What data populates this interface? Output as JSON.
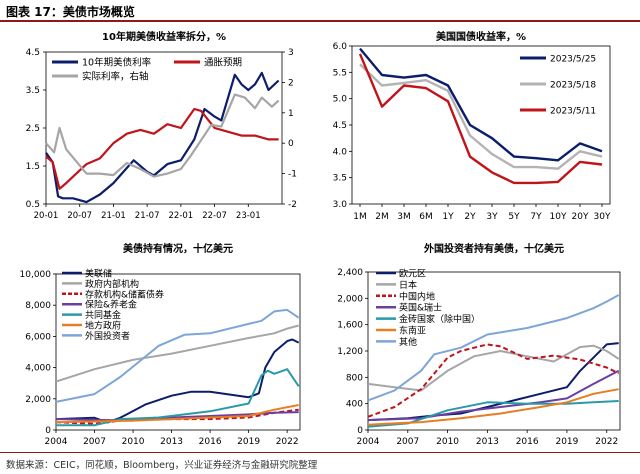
{
  "figure": {
    "label": "图表 17：美债市场概览",
    "source": "数据来源：CEIC，同花顺，Bloomberg，兴业证券经济与金融研究院整理"
  },
  "colors": {
    "navy": "#0b1d6b",
    "red": "#c0141b",
    "gray": "#a6a6a6",
    "lightgray": "#bfbfbf",
    "purple": "#6b3fa0",
    "teal": "#2a9aa8",
    "orange": "#e87d22",
    "blue": "#7da6d6"
  },
  "chart_data": [
    {
      "type": "line",
      "title": "10年期美债收益率拆分，%",
      "ylim": [
        0.5,
        4.5
      ],
      "yticks": [
        0.5,
        1.5,
        2.5,
        3.5,
        4.5
      ],
      "y2lim": [
        -2,
        3
      ],
      "y2ticks": [
        -2,
        -1,
        0,
        1,
        2,
        3
      ],
      "x_range": [
        2020.0,
        2023.5
      ],
      "xticks": [
        {
          "t": 2020.0,
          "label": "20-01"
        },
        {
          "t": 2020.5,
          "label": "20-07"
        },
        {
          "t": 2021.0,
          "label": "21-01"
        },
        {
          "t": 2021.5,
          "label": "21-07"
        },
        {
          "t": 2022.0,
          "label": "22-01"
        },
        {
          "t": 2022.5,
          "label": "22-07"
        },
        {
          "t": 2023.0,
          "label": "23-01"
        }
      ],
      "legend_position": "top",
      "series": [
        {
          "name": "10年期美债利率",
          "color": "#0b1d6b",
          "axis": "left",
          "x": [
            2020.0,
            2020.1,
            2020.18,
            2020.25,
            2020.4,
            2020.6,
            2020.8,
            2021.0,
            2021.2,
            2021.3,
            2021.5,
            2021.6,
            2021.8,
            2022.0,
            2022.2,
            2022.35,
            2022.5,
            2022.6,
            2022.8,
            2022.9,
            2023.0,
            2023.1,
            2023.2,
            2023.3,
            2023.45
          ],
          "values": [
            1.85,
            1.6,
            0.7,
            0.65,
            0.65,
            0.55,
            0.75,
            1.05,
            1.45,
            1.65,
            1.35,
            1.25,
            1.55,
            1.65,
            2.2,
            3.0,
            2.8,
            2.7,
            3.9,
            3.65,
            3.5,
            3.65,
            3.95,
            3.5,
            3.75
          ]
        },
        {
          "name": "通胀预期",
          "color": "#c0141b",
          "axis": "left",
          "x": [
            2020.0,
            2020.1,
            2020.2,
            2020.3,
            2020.45,
            2020.6,
            2020.8,
            2021.0,
            2021.2,
            2021.4,
            2021.6,
            2021.8,
            2022.0,
            2022.2,
            2022.3,
            2022.5,
            2022.7,
            2022.9,
            2023.1,
            2023.3,
            2023.45
          ],
          "values": [
            1.75,
            1.6,
            0.9,
            1.05,
            1.3,
            1.55,
            1.7,
            2.1,
            2.35,
            2.45,
            2.35,
            2.6,
            2.5,
            3.0,
            2.95,
            2.5,
            2.4,
            2.3,
            2.3,
            2.2,
            2.2
          ]
        },
        {
          "name": "实际利率，右轴",
          "color": "#a6a6a6",
          "axis": "right",
          "x": [
            2020.0,
            2020.12,
            2020.2,
            2020.3,
            2020.45,
            2020.6,
            2020.8,
            2021.0,
            2021.2,
            2021.4,
            2021.6,
            2021.8,
            2022.0,
            2022.15,
            2022.3,
            2022.45,
            2022.6,
            2022.8,
            2022.95,
            2023.1,
            2023.2,
            2023.35,
            2023.45
          ],
          "values": [
            0.0,
            -0.3,
            0.5,
            -0.2,
            -0.6,
            -1.0,
            -1.0,
            -1.05,
            -0.65,
            -0.85,
            -1.1,
            -1.0,
            -0.85,
            -0.4,
            0.1,
            0.6,
            0.55,
            1.6,
            1.5,
            1.15,
            1.5,
            1.2,
            1.4
          ]
        }
      ]
    },
    {
      "type": "line",
      "title": "美国国债收益率，%",
      "categories": [
        "1M",
        "2M",
        "3M",
        "6M",
        "1Y",
        "2Y",
        "3Y",
        "5Y",
        "7Y",
        "10Y",
        "20Y",
        "30Y"
      ],
      "ylim": [
        3.0,
        6.0
      ],
      "yticks": [
        3.0,
        3.5,
        4.0,
        4.5,
        5.0,
        5.5,
        6.0
      ],
      "legend_position": "top-right",
      "series": [
        {
          "name": "2023/5/25",
          "color": "#0b1d6b",
          "values": [
            5.95,
            5.45,
            5.4,
            5.45,
            5.25,
            4.5,
            4.25,
            3.9,
            3.87,
            3.83,
            4.15,
            4.0
          ]
        },
        {
          "name": "2023/5/18",
          "color": "#b3b3b3",
          "values": [
            5.65,
            5.25,
            5.3,
            5.35,
            5.15,
            4.3,
            3.95,
            3.7,
            3.7,
            3.67,
            4.0,
            3.9
          ]
        },
        {
          "name": "2023/5/11",
          "color": "#c0141b",
          "values": [
            5.85,
            4.85,
            5.25,
            5.2,
            4.95,
            3.9,
            3.6,
            3.4,
            3.4,
            3.42,
            3.8,
            3.75
          ]
        }
      ]
    },
    {
      "type": "line",
      "title": "美债持有情况，十亿美元",
      "ylim": [
        0,
        10000
      ],
      "yticks": [
        0,
        2000,
        4000,
        6000,
        8000,
        10000
      ],
      "ytick_labels": [
        "0",
        "2,000",
        "4,000",
        "6,000",
        "8,000",
        "10,000"
      ],
      "x_range": [
        2004,
        2023
      ],
      "xticks": [
        2004,
        2007,
        2010,
        2013,
        2016,
        2019,
        2022
      ],
      "legend_position": "top-left",
      "series": [
        {
          "name": "美联储",
          "color": "#0b1d6b",
          "style": "solid",
          "x": [
            2004,
            2007,
            2008,
            2009,
            2011,
            2013,
            2014.5,
            2016,
            2019,
            2019.8,
            2020.3,
            2021,
            2022,
            2022.4,
            2022.9
          ],
          "values": [
            700,
            780,
            480,
            780,
            1650,
            2200,
            2450,
            2450,
            2100,
            2350,
            4000,
            5000,
            5700,
            5800,
            5600
          ]
        },
        {
          "name": "政府内部机构",
          "color": "#a6a6a6",
          "style": "solid",
          "x": [
            2004,
            2007,
            2010,
            2013,
            2016,
            2019,
            2021,
            2022,
            2022.9
          ],
          "values": [
            3100,
            3900,
            4500,
            4900,
            5400,
            5900,
            6200,
            6500,
            6700
          ]
        },
        {
          "name": "存款机构&储蓄债券",
          "color": "#c0141b",
          "style": "dashed",
          "x": [
            2004,
            2007,
            2009,
            2012,
            2016,
            2019,
            2021,
            2022.9
          ],
          "values": [
            500,
            400,
            600,
            700,
            700,
            800,
            1100,
            1300
          ]
        },
        {
          "name": "保险&养老金",
          "color": "#6b3fa0",
          "style": "solid",
          "x": [
            2004,
            2007,
            2010,
            2013,
            2016,
            2019,
            2021,
            2022.9
          ],
          "values": [
            700,
            650,
            600,
            800,
            900,
            1000,
            1100,
            1150
          ]
        },
        {
          "name": "共同基金",
          "color": "#2a9aa8",
          "style": "solid",
          "x": [
            2004,
            2007,
            2009,
            2012,
            2016,
            2019,
            2020,
            2020.5,
            2021,
            2022,
            2022.9
          ],
          "values": [
            300,
            300,
            700,
            800,
            1200,
            1700,
            3500,
            3800,
            3600,
            3900,
            2800
          ]
        },
        {
          "name": "地方政府",
          "color": "#e87d22",
          "style": "solid",
          "x": [
            2004,
            2007,
            2010,
            2013,
            2016,
            2019,
            2021,
            2022.9
          ],
          "values": [
            500,
            550,
            600,
            700,
            800,
            900,
            1300,
            1600
          ]
        },
        {
          "name": "外国投资者",
          "color": "#7da6d6",
          "style": "solid",
          "x": [
            2004,
            2007,
            2009,
            2012,
            2014,
            2016,
            2019,
            2020,
            2021,
            2022,
            2022.9
          ],
          "values": [
            1800,
            2300,
            3400,
            5400,
            6100,
            6200,
            6800,
            7000,
            7600,
            7700,
            7200
          ]
        }
      ]
    },
    {
      "type": "line",
      "title": "外国投资者持有美债，十亿美元",
      "ylim": [
        0,
        2400
      ],
      "yticks": [
        0,
        400,
        800,
        1200,
        1600,
        2000,
        2400
      ],
      "ytick_labels": [
        "0",
        "400",
        "800",
        "1,200",
        "1,600",
        "2,000",
        "2,400"
      ],
      "x_range": [
        2004,
        2023
      ],
      "xticks": [
        2004,
        2007,
        2010,
        2013,
        2016,
        2019,
        2022
      ],
      "legend_position": "top-left",
      "series": [
        {
          "name": "欧元区",
          "color": "#0b1d6b",
          "style": "solid",
          "x": [
            2004,
            2007,
            2009,
            2011,
            2013,
            2015,
            2017,
            2019,
            2020,
            2021,
            2022,
            2022.9
          ],
          "values": [
            150,
            180,
            220,
            250,
            350,
            450,
            550,
            650,
            900,
            1100,
            1300,
            1320
          ]
        },
        {
          "name": "日本",
          "color": "#a6a6a6",
          "style": "solid",
          "x": [
            2004,
            2006,
            2008,
            2010,
            2012,
            2014,
            2016,
            2018,
            2020,
            2021,
            2022,
            2022.9
          ],
          "values": [
            700,
            650,
            600,
            900,
            1120,
            1200,
            1120,
            1040,
            1260,
            1280,
            1200,
            1080
          ]
        },
        {
          "name": "中国内地",
          "color": "#c0141b",
          "style": "dashed",
          "x": [
            2004,
            2006,
            2008,
            2010,
            2011,
            2013,
            2014,
            2016,
            2018,
            2020,
            2022,
            2022.9
          ],
          "values": [
            200,
            350,
            620,
            1100,
            1200,
            1300,
            1270,
            1080,
            1130,
            1070,
            950,
            860
          ]
        },
        {
          "name": "英国&瑞士",
          "color": "#6b3fa0",
          "style": "solid",
          "x": [
            2004,
            2008,
            2011,
            2014,
            2017,
            2019,
            2021,
            2022.9
          ],
          "values": [
            150,
            180,
            280,
            350,
            420,
            480,
            700,
            900
          ]
        },
        {
          "name": "金砖国家（除中国）",
          "color": "#2a9aa8",
          "style": "solid",
          "x": [
            2004,
            2007,
            2010,
            2013,
            2016,
            2019,
            2021,
            2022.9
          ],
          "values": [
            50,
            100,
            300,
            420,
            400,
            400,
            420,
            440
          ]
        },
        {
          "name": "东南亚",
          "color": "#e87d22",
          "style": "solid",
          "x": [
            2004,
            2008,
            2011,
            2014,
            2017,
            2019,
            2021,
            2022.9
          ],
          "values": [
            80,
            120,
            180,
            250,
            350,
            420,
            550,
            620
          ]
        },
        {
          "name": "其他",
          "color": "#7da6d6",
          "style": "solid",
          "x": [
            2004,
            2006,
            2008,
            2009,
            2011,
            2013,
            2016,
            2019,
            2021,
            2022,
            2022.9
          ],
          "values": [
            450,
            600,
            900,
            1150,
            1250,
            1450,
            1550,
            1700,
            1850,
            1950,
            2050
          ]
        }
      ]
    }
  ]
}
